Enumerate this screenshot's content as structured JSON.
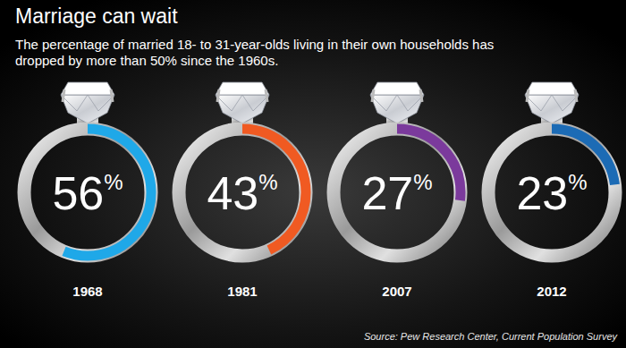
{
  "chart_data": {
    "type": "gauge",
    "title": "Marriage can wait",
    "subtitle": "The percentage of married 18- to 31-year-olds living in their own households has dropped by more than 50% since the 1960s.",
    "categories": [
      "1968",
      "1981",
      "2007",
      "2012"
    ],
    "values": [
      56,
      43,
      27,
      23
    ],
    "value_labels": [
      "56%",
      "43%",
      "27%",
      "23%"
    ],
    "data_labels": true,
    "colors": [
      "#1fa8e8",
      "#f05a22",
      "#7b3a9c",
      "#1c6bb5"
    ],
    "ylim": [
      0,
      100
    ],
    "source": "Source: Pew Research Center, Current Population Survey"
  }
}
